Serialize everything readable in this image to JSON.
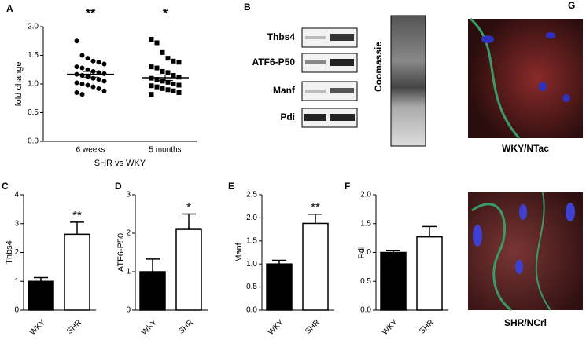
{
  "chart_data": [
    {
      "type": "dotplot",
      "panel_label": "A",
      "y_label": "fold change",
      "x_label": "SHR vs WKY",
      "categories": [
        "6 weeks",
        "5 months"
      ],
      "values": [
        [
          1.75,
          1.5,
          1.45,
          1.4,
          1.38,
          1.35,
          1.3,
          1.28,
          1.25,
          1.22,
          1.2,
          1.18,
          1.17,
          1.15,
          1.13,
          1.1,
          1.08,
          1.05,
          1.02,
          1.0,
          0.98,
          0.95,
          0.92,
          0.88,
          0.85,
          0.82
        ],
        [
          1.78,
          1.72,
          1.55,
          1.45,
          1.4,
          1.38,
          1.3,
          1.28,
          1.22,
          1.2,
          1.15,
          1.12,
          1.1,
          1.08,
          1.05,
          1.03,
          1.0,
          0.98,
          0.97,
          0.95,
          0.92,
          0.9,
          0.88,
          0.85,
          0.82
        ]
      ],
      "markers": [
        "circle",
        "square"
      ],
      "means": [
        1.17,
        1.11
      ],
      "errors": [
        0.05,
        0.05
      ],
      "annotations": [
        "**",
        "*"
      ],
      "ylim": [
        0,
        2
      ],
      "yticks": [
        {
          "value": 0,
          "label": "0.0"
        },
        0.5,
        {
          "value": 1,
          "label": "1.0"
        },
        1.5,
        {
          "value": 2,
          "label": "2.0"
        }
      ]
    },
    {
      "type": "bar",
      "panel_label": "C",
      "y_label": "Thbs4",
      "categories": [
        "WKY",
        "SHR"
      ],
      "values": [
        1.0,
        2.63
      ],
      "errors": [
        0.13,
        0.42
      ],
      "colors": [
        "#000000",
        "#ffffff"
      ],
      "annotations": [
        null,
        "**"
      ],
      "ylim": [
        0,
        4
      ],
      "yticks": [
        0,
        1,
        2,
        3,
        4
      ]
    },
    {
      "type": "bar",
      "panel_label": "D",
      "y_label": "ATF6-P50",
      "categories": [
        "WKY",
        "SHR"
      ],
      "values": [
        1.0,
        2.1
      ],
      "errors": [
        0.33,
        0.4
      ],
      "colors": [
        "#000000",
        "#ffffff"
      ],
      "annotations": [
        null,
        "*"
      ],
      "ylim": [
        0,
        3
      ],
      "yticks": [
        0,
        1,
        2,
        3
      ]
    },
    {
      "type": "bar",
      "panel_label": "E",
      "y_label": "Manf",
      "categories": [
        "WKY",
        "SHR"
      ],
      "values": [
        1.0,
        1.88
      ],
      "errors": [
        0.08,
        0.2
      ],
      "colors": [
        "#000000",
        "#ffffff"
      ],
      "annotations": [
        null,
        "**"
      ],
      "ylim": [
        0,
        2.5
      ],
      "yticks": [
        {
          "value": 0,
          "label": "0.0"
        },
        0.5,
        {
          "value": 1,
          "label": "1.0"
        },
        1.5,
        {
          "value": 2,
          "label": "2.0"
        },
        2.5
      ]
    },
    {
      "type": "bar",
      "panel_label": "F",
      "y_label": "Pdi",
      "categories": [
        "WKY",
        "SHR"
      ],
      "values": [
        1.0,
        1.27
      ],
      "errors": [
        0.03,
        0.18
      ],
      "colors": [
        "#000000",
        "#ffffff"
      ],
      "annotations": [
        null,
        null
      ],
      "ylim": [
        0,
        2
      ],
      "yticks": [
        {
          "value": 0,
          "label": "0.0"
        },
        0.5,
        {
          "value": 1,
          "label": "1.0"
        },
        1.5,
        {
          "value": 2,
          "label": "2.0"
        }
      ]
    }
  ],
  "blot": {
    "panel_label": "B",
    "rows": [
      "Thbs4",
      "ATF6-P50",
      "Manf",
      "Pdi"
    ],
    "stain": "Coomassie"
  },
  "images": {
    "panel_label": "G",
    "captions": [
      "WKY/NTac",
      "SHR/NCrl"
    ]
  }
}
